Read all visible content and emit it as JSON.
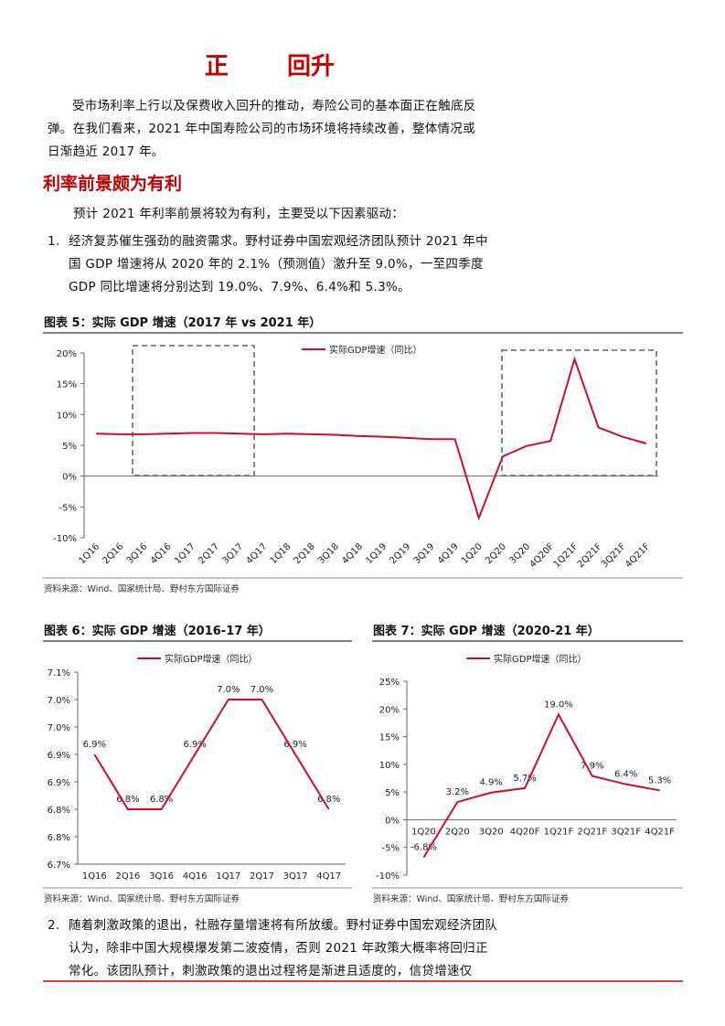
{
  "header": {
    "title_parts": [
      "正",
      "回升"
    ]
  },
  "paragraphs": [
    "受市场利率上行以及保费收入回升的推动，寿险公司的基本面正在触底反弹。在我们看来，2021 年中国寿险公司的市场环境将持续改善，整体情况或日渐趋近 2017 年。"
  ],
  "heading": "利率前景颇为有利",
  "intro": "预计 2021 年利率前景将较为有利，主要受以下因素驱动：",
  "items": [
    {
      "number": "1.",
      "text": "经济复苏催生强劲的融资需求。野村证券中国宏观经济团队预计 2021 年中国 GDP 增速将从 2020 年的 2.1%（预测值）激升至 9.0%，一至四季度 GDP 同比增速将分别达到 19.0%、7.9%、6.4%和 5.3%。"
    },
    {
      "number": "2.",
      "text": "随着刺激政策的退出，社融存量增速将有所放缓。野村证券中国宏观经济团队认为，除非中国大规模爆发第二波疫情，否则 2021 年政策大概率将回归正常化。该团队预计，刺激政策的退出过程将是渐进且适度的，信贷增速仅"
    }
  ],
  "chart_data": [
    {
      "type": "line",
      "title": "图表 5：实际 GDP 增速（2017 年 vs 2021 年）",
      "source": "资料来源：Wind、国家统计局、野村东方国际证券",
      "categories": [
        "1Q16",
        "2Q16",
        "3Q16",
        "4Q16",
        "1Q17",
        "2Q17",
        "3Q17",
        "4Q17",
        "1Q18",
        "2Q18",
        "3Q18",
        "4Q18",
        "1Q19",
        "2Q19",
        "3Q19",
        "4Q19",
        "1Q20",
        "2Q20",
        "3Q20",
        "4Q20F",
        "1Q21F",
        "2Q21F",
        "3Q21F",
        "4Q21F"
      ],
      "series": [
        {
          "name": "实际GDP增速（同比）",
          "color": "#c8102e",
          "values": [
            6.9,
            6.8,
            6.8,
            6.9,
            7.0,
            7.0,
            6.9,
            6.8,
            6.9,
            6.8,
            6.7,
            6.5,
            6.4,
            6.2,
            6.0,
            6.0,
            -6.8,
            3.2,
            4.9,
            5.7,
            19.0,
            7.9,
            6.4,
            5.3
          ]
        }
      ],
      "ylim": [
        -10,
        20
      ],
      "yticks": [
        {
          "value": -10,
          "label": "-10%"
        },
        {
          "value": -5,
          "label": "-5%"
        },
        {
          "value": 0,
          "label": "0%"
        },
        {
          "value": 5,
          "label": "5%"
        },
        {
          "value": 10,
          "label": "10%"
        },
        {
          "value": 15,
          "label": "15%"
        },
        {
          "value": 20,
          "label": "20%"
        }
      ]
    },
    {
      "type": "line",
      "title": "图表 6：实际 GDP 增速（2016-17 年）",
      "source": "资料来源：Wind、国家统计局、野村东方国际证券",
      "categories": [
        "1Q16",
        "2Q16",
        "3Q16",
        "4Q16",
        "1Q17",
        "2Q17",
        "3Q17",
        "4Q17"
      ],
      "series": [
        {
          "name": "实际GDP增速（同比）",
          "color": "#c8102e",
          "values": [
            6.9,
            6.8,
            6.8,
            6.9,
            7.0,
            7.0,
            6.9,
            6.8
          ],
          "value_labels": [
            "6.9%",
            "6.8%",
            "6.8%",
            "6.9%",
            "7.0%",
            "7.0%",
            "6.9%",
            "6.8%"
          ]
        }
      ],
      "ylim": [
        6.7,
        7.05
      ],
      "yticks": [
        {
          "value": 6.7,
          "label": "6.7%"
        },
        {
          "value": 6.75,
          "label": "6.8%"
        },
        {
          "value": 6.8,
          "label": "6.8%"
        },
        {
          "value": 6.85,
          "label": "6.9%"
        },
        {
          "value": 6.9,
          "label": "6.9%"
        },
        {
          "value": 6.95,
          "label": "7.0%"
        },
        {
          "value": 7.0,
          "label": "7.0%"
        },
        {
          "value": 7.05,
          "label": "7.1%"
        }
      ]
    },
    {
      "type": "line",
      "title": "图表 7：实际 GDP 增速（2020-21 年）",
      "source": "资料来源：Wind、国家统计局、野村东方国际证券",
      "categories": [
        "1Q20",
        "2Q20",
        "3Q20",
        "4Q20F",
        "1Q21F",
        "2Q21F",
        "3Q21F",
        "4Q21F"
      ],
      "series": [
        {
          "name": "实际GDP增速（同比）",
          "color": "#c8102e",
          "values": [
            -6.8,
            3.2,
            4.9,
            5.7,
            19.0,
            7.9,
            6.4,
            5.3
          ],
          "value_labels": [
            "-6.8%",
            "3.2%",
            "4.9%",
            "5.7%",
            "19.0%",
            "7.9%",
            "6.4%",
            "5.3%"
          ]
        }
      ],
      "ylim": [
        -10,
        25
      ],
      "yticks": [
        {
          "value": -10,
          "label": "-10%"
        },
        {
          "value": -5,
          "label": "-5%"
        },
        {
          "value": 0,
          "label": "0%"
        },
        {
          "value": 5,
          "label": "5%"
        },
        {
          "value": 10,
          "label": "10%"
        },
        {
          "value": 15,
          "label": "15%"
        },
        {
          "value": 20,
          "label": "20%"
        },
        {
          "value": 25,
          "label": "25%"
        }
      ]
    }
  ]
}
